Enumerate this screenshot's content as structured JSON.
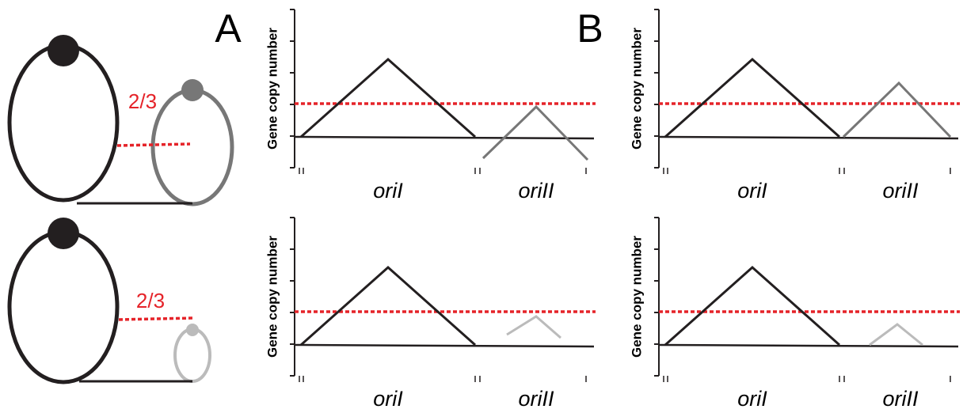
{
  "panels": [
    {
      "letter": "A"
    },
    {
      "letter": "B"
    }
  ],
  "diagrams": [
    {
      "ratio_label": "2/3"
    },
    {
      "ratio_label": "2/3"
    }
  ],
  "plots": [
    {
      "y_label": "Gene copy number",
      "x_labels": [
        "oriI",
        "oriII"
      ]
    },
    {
      "y_label": "Gene copy number",
      "x_labels": [
        "oriI",
        "oriII"
      ]
    },
    {
      "y_label": "Gene copy number",
      "x_labels": [
        "oriI",
        "oriII"
      ]
    },
    {
      "y_label": "Gene copy number",
      "x_labels": [
        "oriI",
        "oriII"
      ]
    }
  ]
}
